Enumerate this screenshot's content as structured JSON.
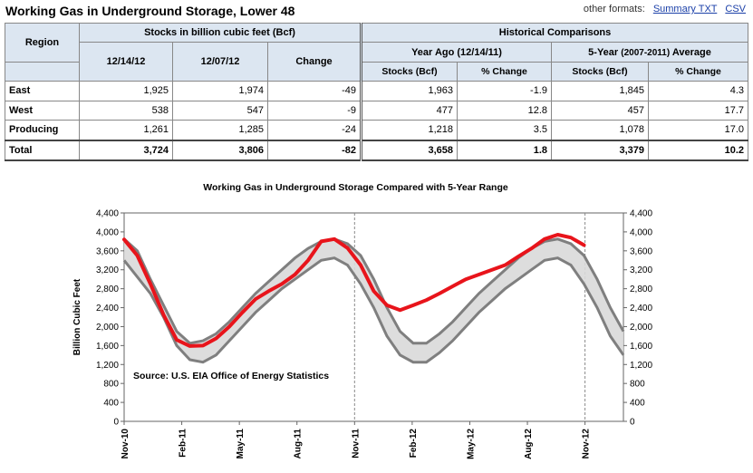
{
  "header": {
    "title": "Working Gas in Underground Storage, Lower 48",
    "formats_label": "other formats:",
    "links": [
      "Summary TXT",
      "CSV"
    ]
  },
  "table": {
    "region_label": "Region",
    "stocks_group": "Stocks in billion cubic feet (Bcf)",
    "hist_group": "Historical Comparisons",
    "col_dates": [
      "12/14/12",
      "12/07/12"
    ],
    "change_label": "Change",
    "year_ago_label": "Year Ago (12/14/11)",
    "five_year_label": "5-Year",
    "five_year_range": "(2007-2011)",
    "average_label": "Average",
    "sub_stocks": "Stocks (Bcf)",
    "sub_pct": "% Change",
    "rows": [
      {
        "region": "East",
        "v1": "1,925",
        "v2": "1,974",
        "chg": "-49",
        "ya": "1,963",
        "yapct": "-1.9",
        "fy": "1,845",
        "fypct": "4.3"
      },
      {
        "region": "West",
        "v1": "538",
        "v2": "547",
        "chg": "-9",
        "ya": "477",
        "yapct": "12.8",
        "fy": "457",
        "fypct": "17.7"
      },
      {
        "region": "Producing",
        "v1": "1,261",
        "v2": "1,285",
        "chg": "-24",
        "ya": "1,218",
        "yapct": "3.5",
        "fy": "1,078",
        "fypct": "17.0"
      },
      {
        "region": "Total",
        "v1": "3,724",
        "v2": "3,806",
        "chg": "-82",
        "ya": "3,658",
        "yapct": "1.8",
        "fy": "3,379",
        "fypct": "10.2"
      }
    ]
  },
  "chart_data": {
    "type": "line",
    "title": "Working Gas in Underground Storage Compared with 5-Year Range",
    "ylabel": "Billion Cubic Feet",
    "annotation": "Source:  U.S. EIA Office of Energy Statistics",
    "ylim": [
      0,
      4400
    ],
    "yticks": [
      "0",
      "400",
      "800",
      "1,200",
      "1,600",
      "2,000",
      "2,400",
      "2,800",
      "3,200",
      "3,600",
      "4,000",
      "4,400"
    ],
    "xticks": [
      "Nov-10",
      "Feb-11",
      "May-11",
      "Aug-11",
      "Nov-11",
      "Feb-12",
      "May-12",
      "Aug-12",
      "Nov-12"
    ],
    "colors": {
      "actual": "#e8141b",
      "range": "#7f7f7f",
      "fill": "#d9d9d9"
    },
    "range_max": [
      3850,
      3600,
      3000,
      2450,
      1900,
      1650,
      1700,
      1850,
      2100,
      2400,
      2700,
      2950,
      3200,
      3450,
      3650,
      3800,
      3850,
      3750,
      3500,
      3000,
      2400,
      1900,
      1650,
      1650,
      1850,
      2100,
      2400,
      2700,
      2950,
      3200,
      3450,
      3650,
      3800,
      3850,
      3750,
      3500,
      3000,
      2400,
      1900
    ],
    "range_min": [
      3400,
      3050,
      2700,
      2200,
      1600,
      1300,
      1250,
      1400,
      1700,
      2000,
      2300,
      2550,
      2800,
      3000,
      3200,
      3400,
      3450,
      3300,
      2900,
      2400,
      1800,
      1400,
      1250,
      1250,
      1450,
      1700,
      2000,
      2300,
      2550,
      2800,
      3000,
      3200,
      3400,
      3450,
      3300,
      2900,
      2400,
      1800,
      1400
    ],
    "actual": [
      3840,
      3500,
      2900,
      2250,
      1720,
      1590,
      1600,
      1750,
      2000,
      2300,
      2580,
      2750,
      2900,
      3100,
      3400,
      3800,
      3850,
      3660,
      3300,
      2750,
      2450,
      2350,
      2450,
      2560,
      2700,
      2850,
      3000,
      3100,
      3200,
      3300,
      3480,
      3650,
      3850,
      3940,
      3880,
      3720
    ]
  }
}
